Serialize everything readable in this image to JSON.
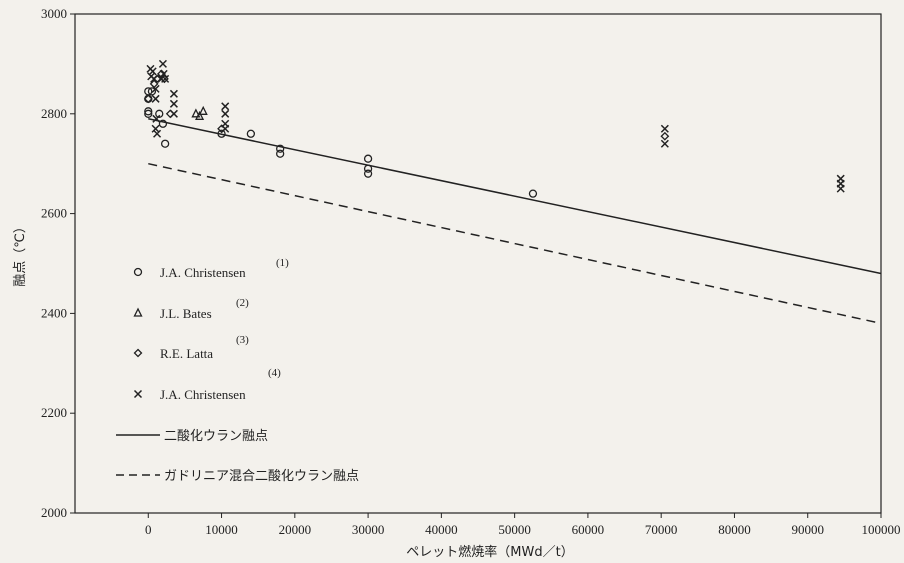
{
  "chart_data": {
    "type": "scatter",
    "xlabel": "ペレット燃焼率（MWd／t）",
    "ylabel": "融点（℃）",
    "xlim": [
      -10000,
      100000
    ],
    "ylim": [
      2000,
      3000
    ],
    "x_ticks": [
      0,
      10000,
      20000,
      30000,
      40000,
      50000,
      60000,
      70000,
      80000,
      90000,
      100000
    ],
    "y_ticks": [
      2000,
      2200,
      2400,
      2600,
      2800,
      3000
    ],
    "grid": false,
    "legend_position": "left",
    "series": [
      {
        "name": "J.A. Christensen",
        "ref": "(1)",
        "marker": "circle",
        "points": [
          [
            0,
            2845
          ],
          [
            0,
            2830
          ],
          [
            0,
            2805
          ],
          [
            0,
            2800
          ],
          [
            500,
            2845
          ],
          [
            1500,
            2800
          ],
          [
            2000,
            2780
          ],
          [
            2300,
            2740
          ],
          [
            10000,
            2760
          ],
          [
            14000,
            2760
          ],
          [
            18000,
            2730
          ],
          [
            18000,
            2720
          ],
          [
            30000,
            2710
          ],
          [
            30000,
            2690
          ],
          [
            30000,
            2680
          ],
          [
            52500,
            2640
          ]
        ]
      },
      {
        "name": "J.L. Bates",
        "ref": "(2)",
        "marker": "triangle",
        "points": [
          [
            6500,
            2800
          ],
          [
            7000,
            2795
          ],
          [
            7500,
            2805
          ]
        ]
      },
      {
        "name": "R.E. Latta",
        "ref": "(3)",
        "marker": "diamond",
        "points": [
          [
            0,
            2830
          ],
          [
            800,
            2860
          ],
          [
            1200,
            2870
          ],
          [
            1800,
            2880
          ],
          [
            2200,
            2870
          ],
          [
            3000,
            2800
          ],
          [
            10000,
            2770
          ],
          [
            70500,
            2755
          ]
        ]
      },
      {
        "name": "J.A. Christensen",
        "ref": "(4)",
        "marker": "x",
        "points": [
          [
            300,
            2890
          ],
          [
            400,
            2875
          ],
          [
            600,
            2885
          ],
          [
            800,
            2870
          ],
          [
            1000,
            2850
          ],
          [
            1000,
            2830
          ],
          [
            1100,
            2790
          ],
          [
            1000,
            2770
          ],
          [
            1200,
            2760
          ],
          [
            1800,
            2870
          ],
          [
            2000,
            2900
          ],
          [
            2100,
            2880
          ],
          [
            2300,
            2870
          ],
          [
            3500,
            2840
          ],
          [
            3500,
            2820
          ],
          [
            3500,
            2800
          ],
          [
            10500,
            2815
          ],
          [
            10500,
            2800
          ],
          [
            10500,
            2780
          ],
          [
            10500,
            2770
          ],
          [
            70500,
            2770
          ],
          [
            70500,
            2740
          ],
          [
            94500,
            2670
          ],
          [
            94500,
            2660
          ],
          [
            94500,
            2650
          ]
        ]
      }
    ],
    "lines": [
      {
        "name": "二酸化ウラン融点",
        "style": "solid",
        "from": [
          0,
          2790
        ],
        "to": [
          100000,
          2480
        ]
      },
      {
        "name": "ガドリニア混合二酸化ウラン融点",
        "style": "dashed",
        "from": [
          0,
          2700
        ],
        "to": [
          100000,
          2380
        ]
      }
    ]
  }
}
